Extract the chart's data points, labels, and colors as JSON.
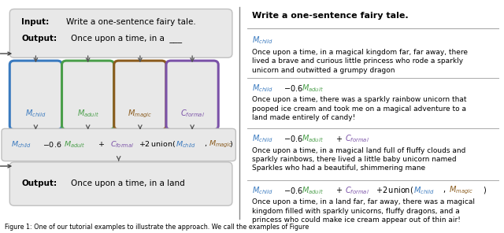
{
  "fig_width": 6.4,
  "fig_height": 2.96,
  "dpi": 100,
  "colors": {
    "child_blue": "#3a7abf",
    "adult_green": "#4a9e4a",
    "magic_brown": "#8b5c1e",
    "formal_purple": "#7b52a8",
    "arrow_color": "#555555",
    "divider_color": "#aaaaaa",
    "box_bg": "#e8e8e8",
    "box_border": "#c0c0c0"
  },
  "left": {
    "input_line1_bold": "Input:",
    "input_line1_normal": " Write a one-sentence fairy tale.",
    "input_line2_bold": "Output:",
    "input_line2_normal": " Once upon a time, in a ___",
    "output_bold": "Output:",
    "output_normal": " Once upon a time, in a land",
    "model_labels": [
      "$\\mathit{M}_{\\mathit{child}}$",
      "$\\mathit{M}_{\\mathit{adult}}$",
      "$\\mathit{M}_{\\mathit{magic}}$",
      "$\\mathit{C}_{\\mathit{formal}}$"
    ],
    "model_colors": [
      "#3a7abf",
      "#4a9e4a",
      "#8b5c1e",
      "#7b52a8"
    ]
  },
  "right": {
    "title": "Write a one-sentence fairy tale.",
    "section_bodies": [
      "Once upon a time, in a magical kingdom far, far away, there\nlived a brave and curious little princess who rode a sparkly\nunicorn and outwitted a grumpy dragon",
      "Once upon a time, there was a sparkly rainbow unicorn that\npooped ice cream and took me on a magical adventure to a\nland made entirely of candy!",
      "Once upon a time, in a magical land full of fluffy clouds and\nsparkly rainbows, there lived a little baby unicorn named\nSparkles who had a beautiful, shimmering mane",
      "Once upon a time, in a land far, far away, there was a magical\nkingdom filled with sparkly unicorns, fluffy dragons, and a\nprincess who could make ice cream appear out of thin air!"
    ]
  },
  "caption": "Figure 1: One of our tutorial examples to illustrate the approach. We call the examples of Figure"
}
